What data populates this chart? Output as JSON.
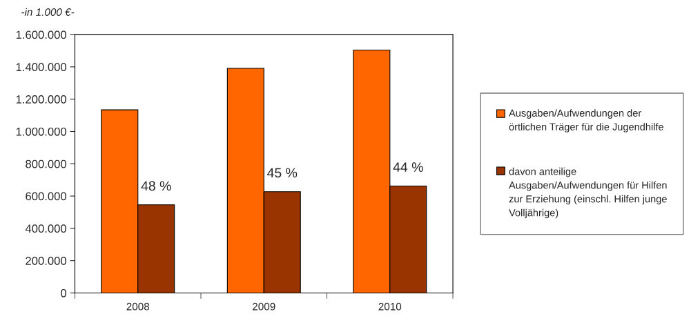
{
  "chart_data": {
    "type": "bar",
    "categories": [
      "2008",
      "2009",
      "2010"
    ],
    "series": [
      {
        "name": "Ausgaben/Aufwendungen der örtlichen Träger für die Jugendhilfe",
        "color": "#ff6600",
        "values": [
          1134000,
          1391000,
          1504000
        ]
      },
      {
        "name": "davon anteilige Ausgaben/Aufwendungen für Hilfen zur Erziehung (einschl. Hilfen junge Volljährige)",
        "color": "#993300",
        "values": [
          546000,
          627000,
          662000
        ]
      }
    ],
    "ylim": [
      0,
      1600000
    ],
    "yticks": [
      0,
      {
        "value": 200000,
        "label": "200.000"
      },
      {
        "value": 400000,
        "label": "400.000"
      },
      {
        "value": 600000,
        "label": "600.000"
      },
      {
        "value": 800000,
        "label": "800.000"
      },
      {
        "value": 1000000,
        "label": "1.000.000"
      },
      {
        "value": 1200000,
        "label": "1.200.000"
      },
      {
        "value": 1400000,
        "label": "1.400.000"
      },
      {
        "value": 1600000,
        "label": "1.600.000"
      }
    ],
    "annotations": [
      "-in 1.000 €-",
      {
        "text": "48 %",
        "x": "2008",
        "y": 546000
      },
      {
        "text": "45 %",
        "x": "2009",
        "y": 627000
      },
      {
        "text": "44 %",
        "x": "2010",
        "y": 662000
      }
    ],
    "legend": "right",
    "grid": false
  }
}
